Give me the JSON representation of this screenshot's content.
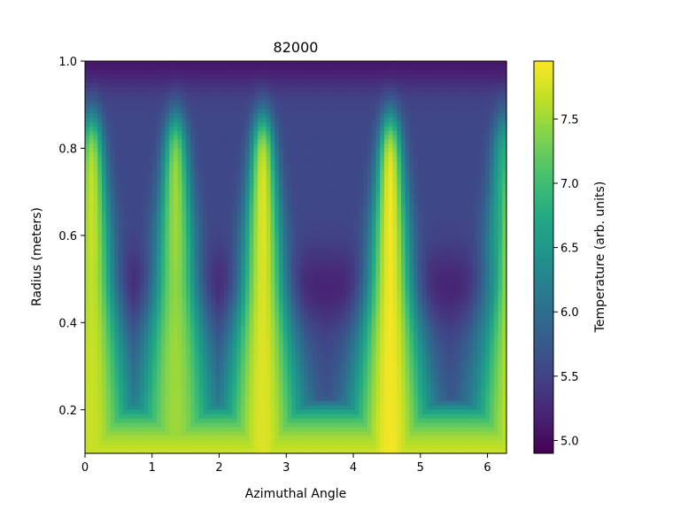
{
  "chart_data": {
    "type": "heatmap",
    "title": "82000",
    "xlabel": "Azimuthal Angle",
    "ylabel": "Radius (meters)",
    "xlim": [
      0,
      6.2832
    ],
    "ylim": [
      0.1,
      1.0
    ],
    "x_ticks": [
      "0",
      "1",
      "2",
      "3",
      "4",
      "5",
      "6"
    ],
    "y_ticks": [
      "0.2",
      "0.4",
      "0.6",
      "0.8",
      "1.0"
    ],
    "colormap": "viridis",
    "colorbar": {
      "label": "Temperature (arb. units)",
      "range": [
        4.9,
        7.95
      ],
      "ticks": [
        "5.0",
        "5.5",
        "6.0",
        "6.5",
        "7.0",
        "7.5"
      ]
    },
    "grid": false,
    "legend": "none",
    "plumes": [
      {
        "angle": 0.1,
        "value": 7.7
      },
      {
        "angle": 1.35,
        "value": 7.5
      },
      {
        "angle": 2.65,
        "value": 7.8
      },
      {
        "angle": 4.55,
        "value": 7.9
      },
      {
        "angle": 6.25,
        "value": 6.9
      }
    ]
  }
}
